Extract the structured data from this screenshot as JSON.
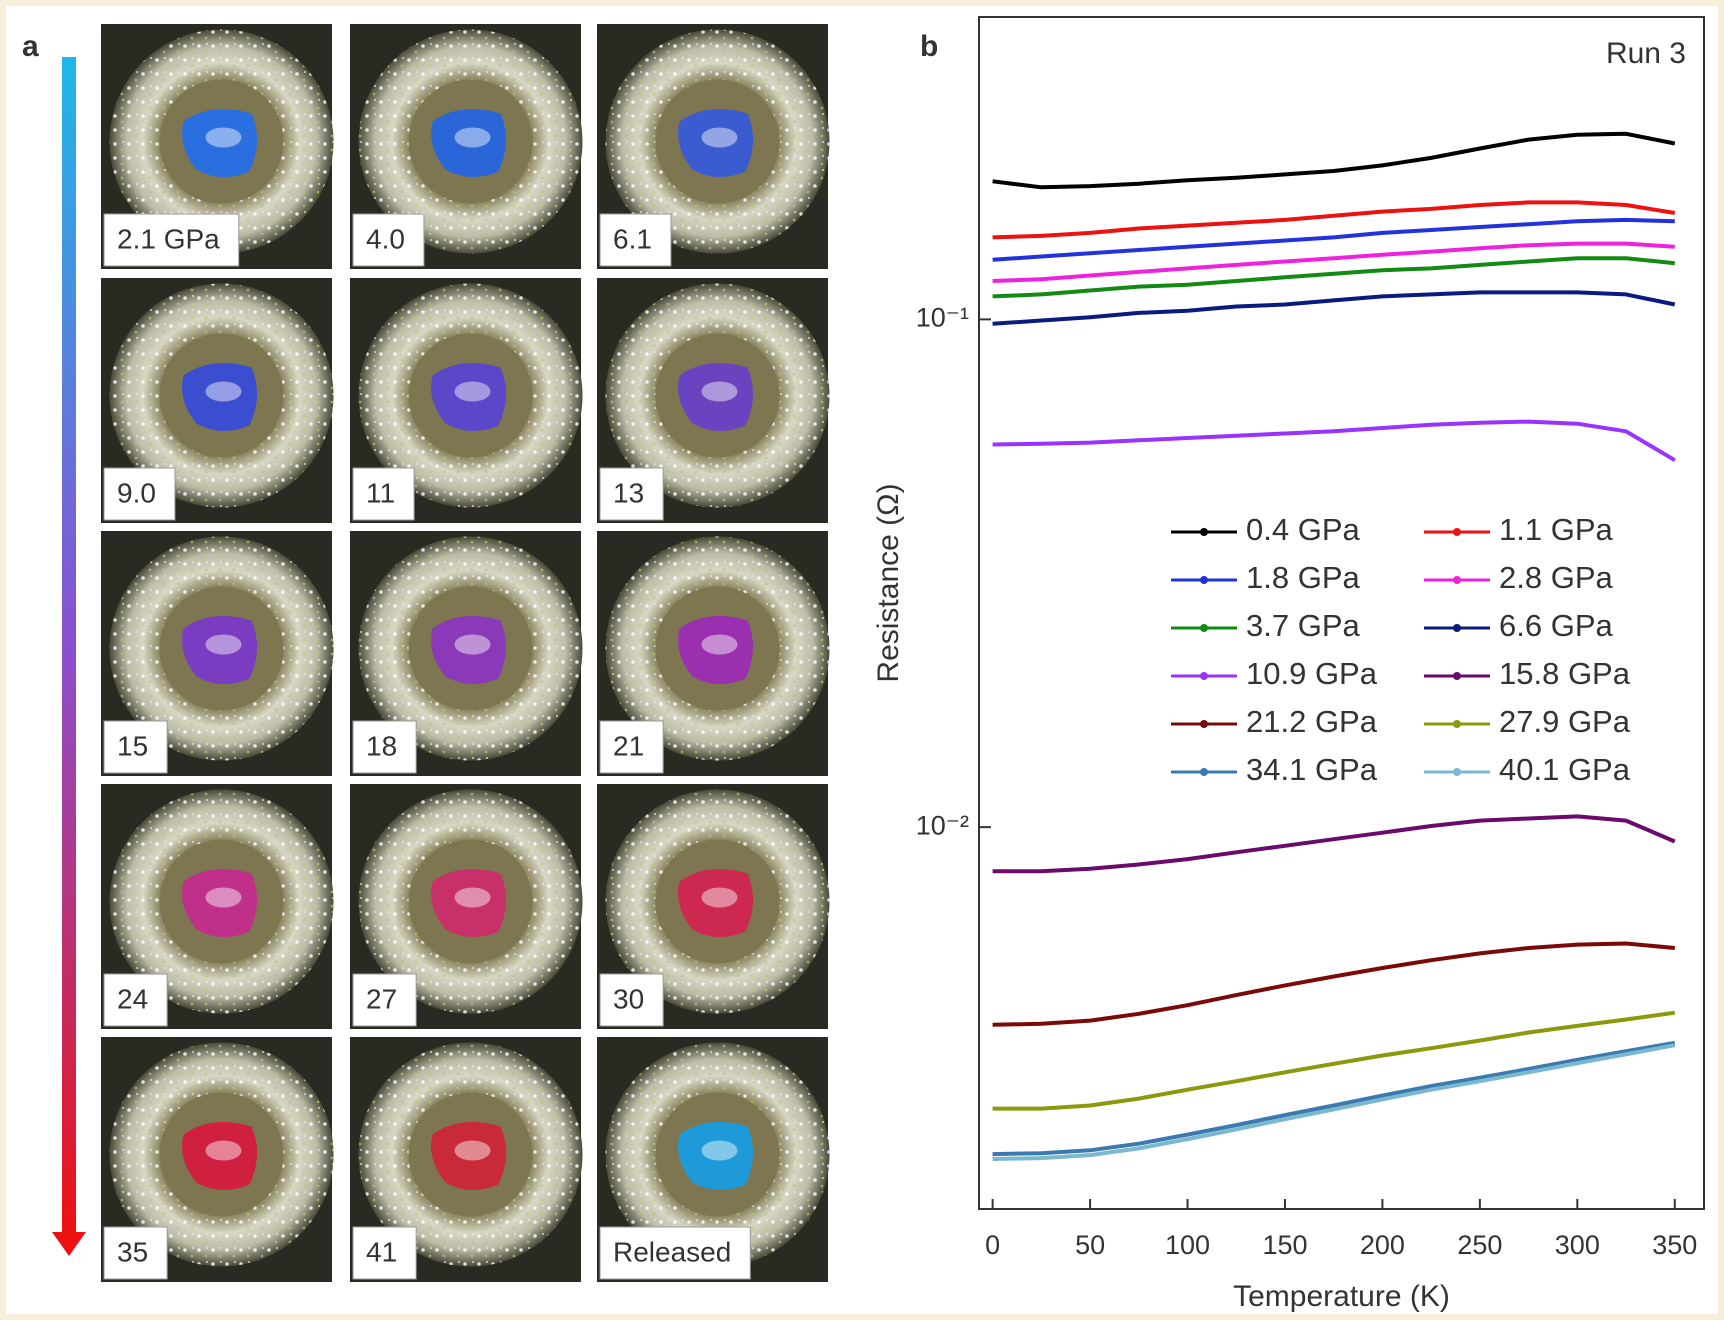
{
  "panel_a": {
    "label": "a",
    "photos": [
      "2.1 GPa",
      "4.0",
      "6.1",
      "9.0",
      "11",
      "13",
      "15",
      "18",
      "21",
      "24",
      "27",
      "30",
      "35",
      "41",
      "Released"
    ]
  },
  "chart_data": {
    "type": "line",
    "panel_label": "b",
    "annotation": "Run 3",
    "xlabel": "Temperature (K)",
    "ylabel": "Resistance (Ω)",
    "x": [
      0,
      25,
      50,
      75,
      100,
      125,
      150,
      175,
      200,
      225,
      250,
      275,
      300,
      325,
      350
    ],
    "xlim": [
      -7,
      365
    ],
    "xticks": [
      0,
      50,
      100,
      150,
      200,
      250,
      300,
      350
    ],
    "ylim": [
      0.00177,
      0.394
    ],
    "yscale": "log",
    "yticks": [
      {
        "value": 0.1,
        "label": "10⁻¹"
      },
      {
        "value": 0.01,
        "label": "10⁻²"
      }
    ],
    "legend": "right",
    "series": [
      {
        "name": "0.4 GPa",
        "color": "#000000",
        "values": [
          0.187,
          0.182,
          0.183,
          0.185,
          0.188,
          0.19,
          0.193,
          0.196,
          0.201,
          0.208,
          0.217,
          0.226,
          0.231,
          0.232,
          0.222
        ]
      },
      {
        "name": "1.1 GPa",
        "color": "#ee1111",
        "values": [
          0.145,
          0.146,
          0.148,
          0.151,
          0.153,
          0.155,
          0.157,
          0.16,
          0.163,
          0.165,
          0.168,
          0.17,
          0.17,
          0.168,
          0.162
        ]
      },
      {
        "name": "1.8 GPa",
        "color": "#2233dd",
        "values": [
          0.131,
          0.133,
          0.135,
          0.137,
          0.139,
          0.141,
          0.143,
          0.145,
          0.148,
          0.15,
          0.152,
          0.154,
          0.156,
          0.157,
          0.156
        ]
      },
      {
        "name": "2.8 GPa",
        "color": "#ee22dd",
        "values": [
          0.119,
          0.12,
          0.122,
          0.124,
          0.126,
          0.128,
          0.13,
          0.132,
          0.134,
          0.136,
          0.138,
          0.14,
          0.141,
          0.141,
          0.139
        ]
      },
      {
        "name": "3.7 GPa",
        "color": "#138a13",
        "values": [
          0.111,
          0.112,
          0.114,
          0.116,
          0.117,
          0.119,
          0.121,
          0.123,
          0.125,
          0.126,
          0.128,
          0.13,
          0.132,
          0.132,
          0.129
        ]
      },
      {
        "name": "6.6 GPa",
        "color": "#0a1a80",
        "values": [
          0.098,
          0.0995,
          0.101,
          0.103,
          0.104,
          0.106,
          0.107,
          0.109,
          0.111,
          0.112,
          0.113,
          0.113,
          0.113,
          0.112,
          0.107
        ]
      },
      {
        "name": "10.9 GPa",
        "color": "#9933ff",
        "values": [
          0.0567,
          0.0569,
          0.0572,
          0.0578,
          0.0584,
          0.059,
          0.0596,
          0.0602,
          0.0611,
          0.062,
          0.0626,
          0.0629,
          0.0623,
          0.0602,
          0.0528
        ]
      },
      {
        "name": "15.8 GPa",
        "color": "#6a0a6a",
        "values": [
          0.00819,
          0.00819,
          0.00828,
          0.00844,
          0.00865,
          0.00892,
          0.00919,
          0.00947,
          0.00975,
          0.01005,
          0.0103,
          0.0104,
          0.0105,
          0.0103,
          0.00937
        ]
      },
      {
        "name": "21.2 GPa",
        "color": "#7a0a0a",
        "values": [
          0.00408,
          0.0041,
          0.00416,
          0.00429,
          0.00446,
          0.00467,
          0.00488,
          0.00508,
          0.00528,
          0.00547,
          0.00564,
          0.00578,
          0.00587,
          0.0059,
          0.00578
        ]
      },
      {
        "name": "27.9 GPa",
        "color": "#8a9a0a",
        "values": [
          0.00279,
          0.00279,
          0.00283,
          0.00292,
          0.00304,
          0.00316,
          0.00329,
          0.00342,
          0.00355,
          0.00367,
          0.0038,
          0.00394,
          0.00406,
          0.00418,
          0.00431
        ]
      },
      {
        "name": "34.1 GPa",
        "color": "#3a7ab0",
        "values": [
          0.00227,
          0.00228,
          0.00231,
          0.00238,
          0.00248,
          0.00259,
          0.00271,
          0.00283,
          0.00296,
          0.00309,
          0.00321,
          0.00334,
          0.00348,
          0.00362,
          0.00376
        ]
      },
      {
        "name": "40.1 GPa",
        "color": "#7ab8d0",
        "values": [
          0.00222,
          0.00223,
          0.00226,
          0.00233,
          0.00243,
          0.00254,
          0.00266,
          0.00278,
          0.00291,
          0.00304,
          0.00316,
          0.00329,
          0.00343,
          0.00357,
          0.00372
        ]
      }
    ]
  }
}
